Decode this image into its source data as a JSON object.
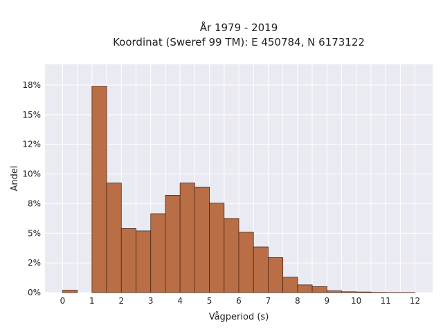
{
  "chart_data": {
    "type": "bar",
    "title": "År 1979 - 2019",
    "subtitle": "Koordinat (Sweref 99 TM): E 450784, N 6173122",
    "xlabel": "Vågperiod (s)",
    "ylabel": "Andel",
    "xlim": [
      -0.6,
      12.6
    ],
    "ylim": [
      0,
      0.1925
    ],
    "x_ticks": [
      0,
      1,
      2,
      3,
      4,
      5,
      6,
      7,
      8,
      9,
      10,
      11,
      12
    ],
    "x_tick_labels": [
      "0",
      "1",
      "2",
      "3",
      "4",
      "5",
      "6",
      "7",
      "8",
      "9",
      "10",
      "11",
      "12"
    ],
    "y_ticks": [
      0,
      0.025,
      0.05,
      0.075,
      0.1,
      0.125,
      0.15,
      0.175
    ],
    "y_tick_labels": [
      "0%",
      "2%",
      "5%",
      "8%",
      "10%",
      "12%",
      "15%",
      "18%"
    ],
    "bin_width": 0.5,
    "bins": [
      {
        "x": 0.0,
        "value": 0.002
      },
      {
        "x": 0.5,
        "value": 0.0
      },
      {
        "x": 1.0,
        "value": 0.174
      },
      {
        "x": 1.5,
        "value": 0.0925
      },
      {
        "x": 2.0,
        "value": 0.054
      },
      {
        "x": 2.5,
        "value": 0.052
      },
      {
        "x": 3.0,
        "value": 0.0665
      },
      {
        "x": 3.5,
        "value": 0.082
      },
      {
        "x": 4.0,
        "value": 0.0925
      },
      {
        "x": 4.5,
        "value": 0.089
      },
      {
        "x": 5.0,
        "value": 0.0755
      },
      {
        "x": 5.5,
        "value": 0.0625
      },
      {
        "x": 6.0,
        "value": 0.051
      },
      {
        "x": 6.5,
        "value": 0.0385
      },
      {
        "x": 7.0,
        "value": 0.0295
      },
      {
        "x": 7.5,
        "value": 0.013
      },
      {
        "x": 8.0,
        "value": 0.0065
      },
      {
        "x": 8.5,
        "value": 0.005
      },
      {
        "x": 9.0,
        "value": 0.0015
      },
      {
        "x": 9.5,
        "value": 0.0007
      },
      {
        "x": 10.0,
        "value": 0.0005
      },
      {
        "x": 10.5,
        "value": 0.0002
      },
      {
        "x": 11.0,
        "value": 0.0001
      },
      {
        "x": 11.5,
        "value": 0.0001
      }
    ],
    "grid": true,
    "colors": {
      "bar_fill": "#b96e45",
      "bar_stroke": "#4a2a1a",
      "plot_background": "#eaeaf2",
      "grid": "#ffffff"
    }
  }
}
